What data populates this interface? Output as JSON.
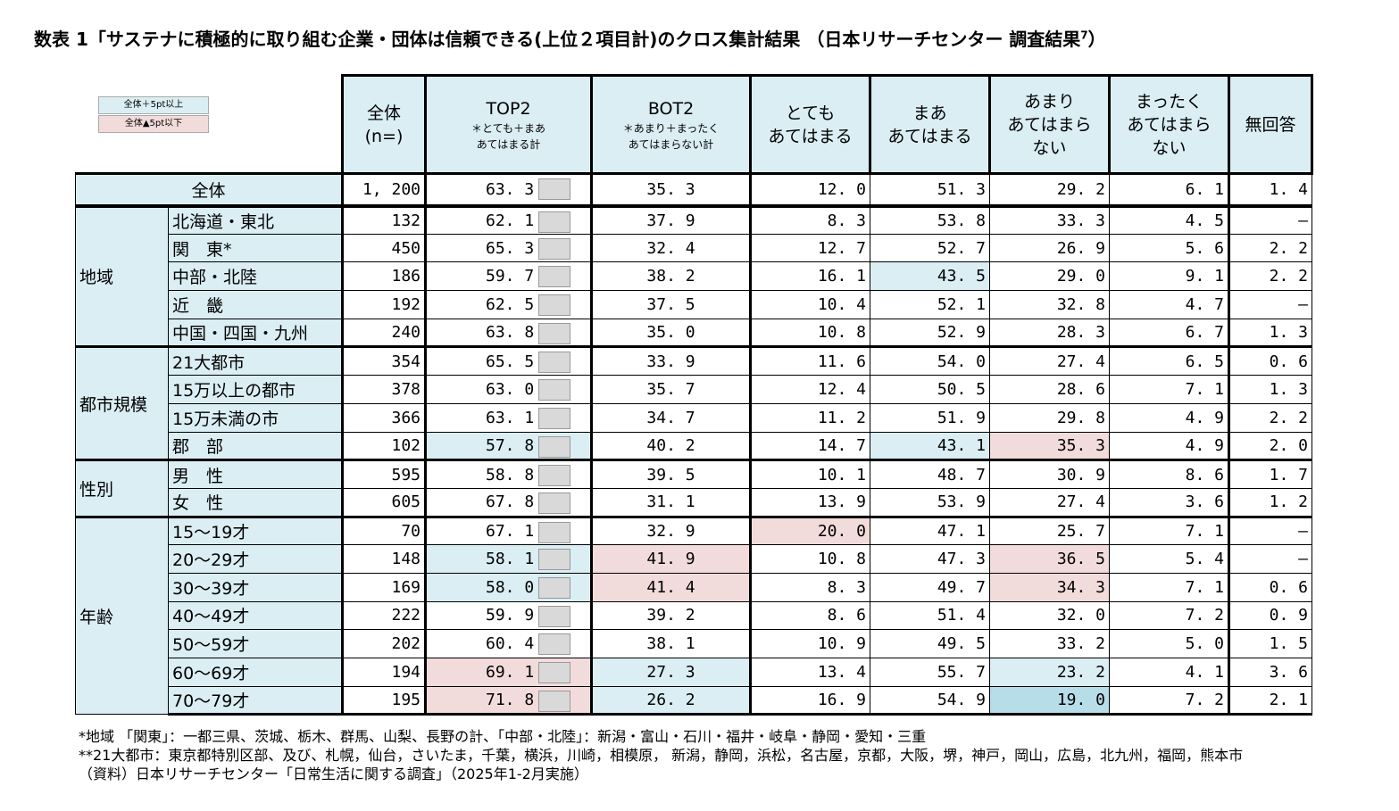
{
  "title": "数表 1「サステナに積極的に取り組む企業・団体は信頼できる(上位２項目計)のクロス集計結果 （日本リサーチセンター 調査結果",
  "title_sup": "7",
  "title_end": "）",
  "legend": [
    {
      "label": "全体＋5pt以上",
      "color": "#daeef3"
    },
    {
      "label": "全体▲5pt以下",
      "color": "#f2dcdb"
    }
  ],
  "table": {
    "headers": [
      {
        "text": "全体\n(n=)"
      },
      {
        "text": "TOP2",
        "sub": "＊とても＋まあ\nあてはまる計"
      },
      {
        "text": "BOT2",
        "sub": "＊あまり＋まったく\nあてはまらない計"
      },
      {
        "text": "とても\nあてはまる"
      },
      {
        "text": "まあ\nあてはまる"
      },
      {
        "text": "あまり\nあてはまら\nない"
      },
      {
        "text": "まったく\nあてはまら\nない"
      },
      {
        "text": "無回答"
      }
    ],
    "total": {
      "label": "全体",
      "cells": [
        "1, 200",
        "63. 3",
        "35. 3",
        "12. 0",
        "51. 3",
        "29. 2",
        "6. 1",
        "1. 4"
      ],
      "fills": {}
    },
    "groups": [
      {
        "name": "地域",
        "rows": [
          {
            "label": "北海道・東北",
            "cells": [
              "132",
              "62. 1",
              "37. 9",
              "8. 3",
              "53. 8",
              "33. 3",
              "4. 5",
              "–"
            ],
            "fills": {}
          },
          {
            "label": "関　東*",
            "cells": [
              "450",
              "65. 3",
              "32. 4",
              "12. 7",
              "52. 7",
              "26. 9",
              "5. 6",
              "2. 2"
            ],
            "fills": {}
          },
          {
            "label": "中部・北陸",
            "cells": [
              "186",
              "59. 7",
              "38. 2",
              "16. 1",
              "43. 5",
              "29. 0",
              "9. 1",
              "2. 2"
            ],
            "fills": {
              "4": "#daeef3"
            }
          },
          {
            "label": "近　畿",
            "cells": [
              "192",
              "62. 5",
              "37. 5",
              "10. 4",
              "52. 1",
              "32. 8",
              "4. 7",
              "–"
            ],
            "fills": {}
          },
          {
            "label": "中国・四国・九州",
            "cells": [
              "240",
              "63. 8",
              "35. 0",
              "10. 8",
              "52. 9",
              "28. 3",
              "6. 7",
              "1. 3"
            ],
            "fills": {}
          }
        ]
      },
      {
        "name": "都市規模",
        "rows": [
          {
            "label": "21大都市",
            "cells": [
              "354",
              "65. 5",
              "33. 9",
              "11. 6",
              "54. 0",
              "27. 4",
              "6. 5",
              "0. 6"
            ],
            "fills": {}
          },
          {
            "label": "15万以上の都市",
            "cells": [
              "378",
              "63. 0",
              "35. 7",
              "12. 4",
              "50. 5",
              "28. 6",
              "7. 1",
              "1. 3"
            ],
            "fills": {}
          },
          {
            "label": "15万未満の市",
            "cells": [
              "366",
              "63. 1",
              "34. 7",
              "11. 2",
              "51. 9",
              "29. 8",
              "4. 9",
              "2. 2"
            ],
            "fills": {}
          },
          {
            "label": "郡　部",
            "cells": [
              "102",
              "57. 8",
              "40. 2",
              "14. 7",
              "43. 1",
              "35. 3",
              "4. 9",
              "2. 0"
            ],
            "fills": {
              "1": "#daeef3",
              "4": "#daeef3",
              "5": "#f2dcdb"
            }
          }
        ]
      },
      {
        "name": "性別",
        "rows": [
          {
            "label": "男　性",
            "cells": [
              "595",
              "58. 8",
              "39. 5",
              "10. 1",
              "48. 7",
              "30. 9",
              "8. 6",
              "1. 7"
            ],
            "fills": {}
          },
          {
            "label": "女　性",
            "cells": [
              "605",
              "67. 8",
              "31. 1",
              "13. 9",
              "53. 9",
              "27. 4",
              "3. 6",
              "1. 2"
            ],
            "fills": {}
          }
        ]
      },
      {
        "name": "年齢",
        "rows": [
          {
            "label": "15～19才",
            "cells": [
              "70",
              "67. 1",
              "32. 9",
              "20. 0",
              "47. 1",
              "25. 7",
              "7. 1",
              "–"
            ],
            "fills": {
              "3": "#f2dcdb"
            }
          },
          {
            "label": "20～29才",
            "cells": [
              "148",
              "58. 1",
              "41. 9",
              "10. 8",
              "47. 3",
              "36. 5",
              "5. 4",
              "–"
            ],
            "fills": {
              "1": "#daeef3",
              "2": "#f2dcdb",
              "5": "#f2dcdb"
            }
          },
          {
            "label": "30～39才",
            "cells": [
              "169",
              "58. 0",
              "41. 4",
              "8. 3",
              "49. 7",
              "34. 3",
              "7. 1",
              "0. 6"
            ],
            "fills": {
              "1": "#daeef3",
              "2": "#f2dcdb",
              "5": "#f2dcdb"
            }
          },
          {
            "label": "40～49才",
            "cells": [
              "222",
              "59. 9",
              "39. 2",
              "8. 6",
              "51. 4",
              "32. 0",
              "7. 2",
              "0. 9"
            ],
            "fills": {}
          },
          {
            "label": "50～59才",
            "cells": [
              "202",
              "60. 4",
              "38. 1",
              "10. 9",
              "49. 5",
              "33. 2",
              "5. 0",
              "1. 5"
            ],
            "fills": {}
          },
          {
            "label": "60～69才",
            "cells": [
              "194",
              "69. 1",
              "27. 3",
              "13. 4",
              "55. 7",
              "23. 2",
              "4. 1",
              "3. 6"
            ],
            "fills": {
              "1": "#f2dcdb",
              "2": "#daeef3",
              "5": "#daeef3"
            }
          },
          {
            "label": "70～79才",
            "cells": [
              "195",
              "71. 8",
              "26. 2",
              "16. 9",
              "54. 9",
              "19. 0",
              "7. 2",
              "2. 1"
            ],
            "fills": {
              "1": "#f2dcdb",
              "2": "#daeef3",
              "5": "#b7dde8"
            }
          }
        ]
      }
    ]
  },
  "notes": [
    "*地域 「関東」：一都三県、茨城、栃木、群馬、山梨、長野の計、「中部・北陸」：新潟・富山・石川・福井・岐阜・静岡・愛知・三重",
    "**21大都市：東京都特別区部、及び、札幌，仙台，さいたま，千葉，横浜，川崎，相模原， 新潟，静岡，浜松，名古屋，京都，大阪，堺，神戸，岡山，広島，北九州，福岡，熊本市",
    "（資料）日本リサーチセンター「日常生活に関する調査」（2025年1-2月実施）"
  ]
}
